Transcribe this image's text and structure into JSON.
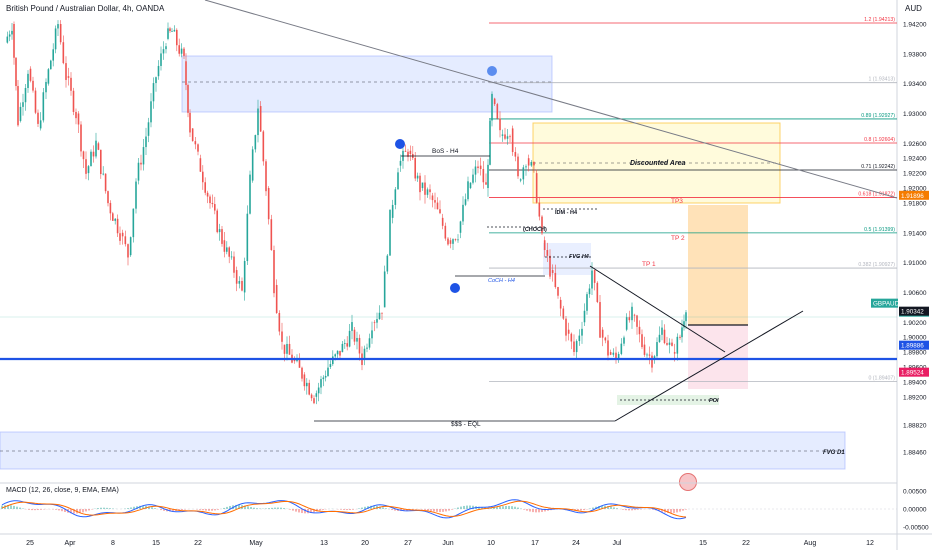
{
  "header": {
    "title": "British Pound / Australian Dollar, 4h, OANDA",
    "currency": "AUD"
  },
  "macd_legend": "MACD (12, 26, close, 9, EMA, EMA)",
  "chart_data": {
    "type": "candlestick",
    "symbol": "GBPAUD",
    "timeframe": "4h",
    "price_axis": {
      "ticks": [
        "1.94200",
        "1.93800",
        "1.93400",
        "1.93000",
        "1.92600",
        "1.92400",
        "1.92200",
        "1.92000",
        "1.91800",
        "1.91400",
        "1.91000",
        "1.90600",
        "1.90200",
        "1.90000",
        "1.89800",
        "1.89600",
        "1.89400",
        "1.89200",
        "1.88820",
        "1.88460"
      ],
      "tick_values": [
        1.942,
        1.938,
        1.934,
        1.93,
        1.926,
        1.924,
        1.922,
        1.92,
        1.918,
        1.914,
        1.91,
        1.906,
        1.902,
        1.9,
        1.898,
        1.896,
        1.894,
        1.892,
        1.8882,
        1.8846
      ]
    },
    "macd_axis": {
      "ticks": [
        "0.00500",
        "0.00000",
        "-0.00500"
      ]
    },
    "time_axis": [
      "25",
      "Apr",
      "8",
      "15",
      "22",
      "May",
      "13",
      "20",
      "27",
      "Jun",
      "10",
      "17",
      "24",
      "Jul",
      "15",
      "22",
      "Aug",
      "12"
    ],
    "price_labels": [
      {
        "text": "1.91896",
        "color": "#f57c00",
        "value": 1.91896
      },
      {
        "text": "GBPAUD",
        "color": "#26a69a",
        "value": 1.90436
      },
      {
        "text": "1.90436",
        "color": "#26a69a",
        "value": 1.90436
      },
      {
        "text": "1.90342",
        "color": "#131722",
        "value": 1.90342
      },
      {
        "text": "1.89886",
        "color": "#1e53e5",
        "value": 1.89886
      },
      {
        "text": "1.89524",
        "color": "#e91e63",
        "value": 1.89524
      }
    ],
    "fib_levels": [
      {
        "label": "1.2 (1.94213)",
        "value": 1.94213,
        "color": "#f23645"
      },
      {
        "label": "1 (1.93413)",
        "value": 1.93413,
        "color": "#b2b5be"
      },
      {
        "label": "0.89 (1.92927)",
        "value": 1.92927,
        "color": "#089981"
      },
      {
        "label": "0.8 (1.92604)",
        "value": 1.92604,
        "color": "#f23645"
      },
      {
        "label": "0.71 (1.92242)",
        "value": 1.92242,
        "color": "#131722"
      },
      {
        "label": "0.618 (1.91872)",
        "value": 1.91872,
        "color": "#f23645"
      },
      {
        "label": "0.5 (1.91399)",
        "value": 1.91399,
        "color": "#089981"
      },
      {
        "label": "0.382 (1.90927)",
        "value": 1.90927,
        "color": "#b2b5be"
      },
      {
        "label": "0 (1.89407)",
        "value": 1.89407,
        "color": "#b2b5be"
      }
    ],
    "annotations": {
      "bos": "BoS - H4",
      "discounted": "Discounted Area",
      "idm": "IDM - H4",
      "choch": "(CHOCH)",
      "fvg_h4": "FVG H4",
      "choch_h4": "CoCH - H4",
      "tp3": "TP3",
      "tp2": "TP 2",
      "tp1": "TP 1",
      "poi": "POI",
      "eql": "$$$ - EQL",
      "fvg_d1": "FVG D1"
    },
    "colors": {
      "up": "#26a69a",
      "down": "#ef5350",
      "macd": "#2962ff",
      "signal": "#ff6d00",
      "support": "#1e53e5"
    }
  }
}
